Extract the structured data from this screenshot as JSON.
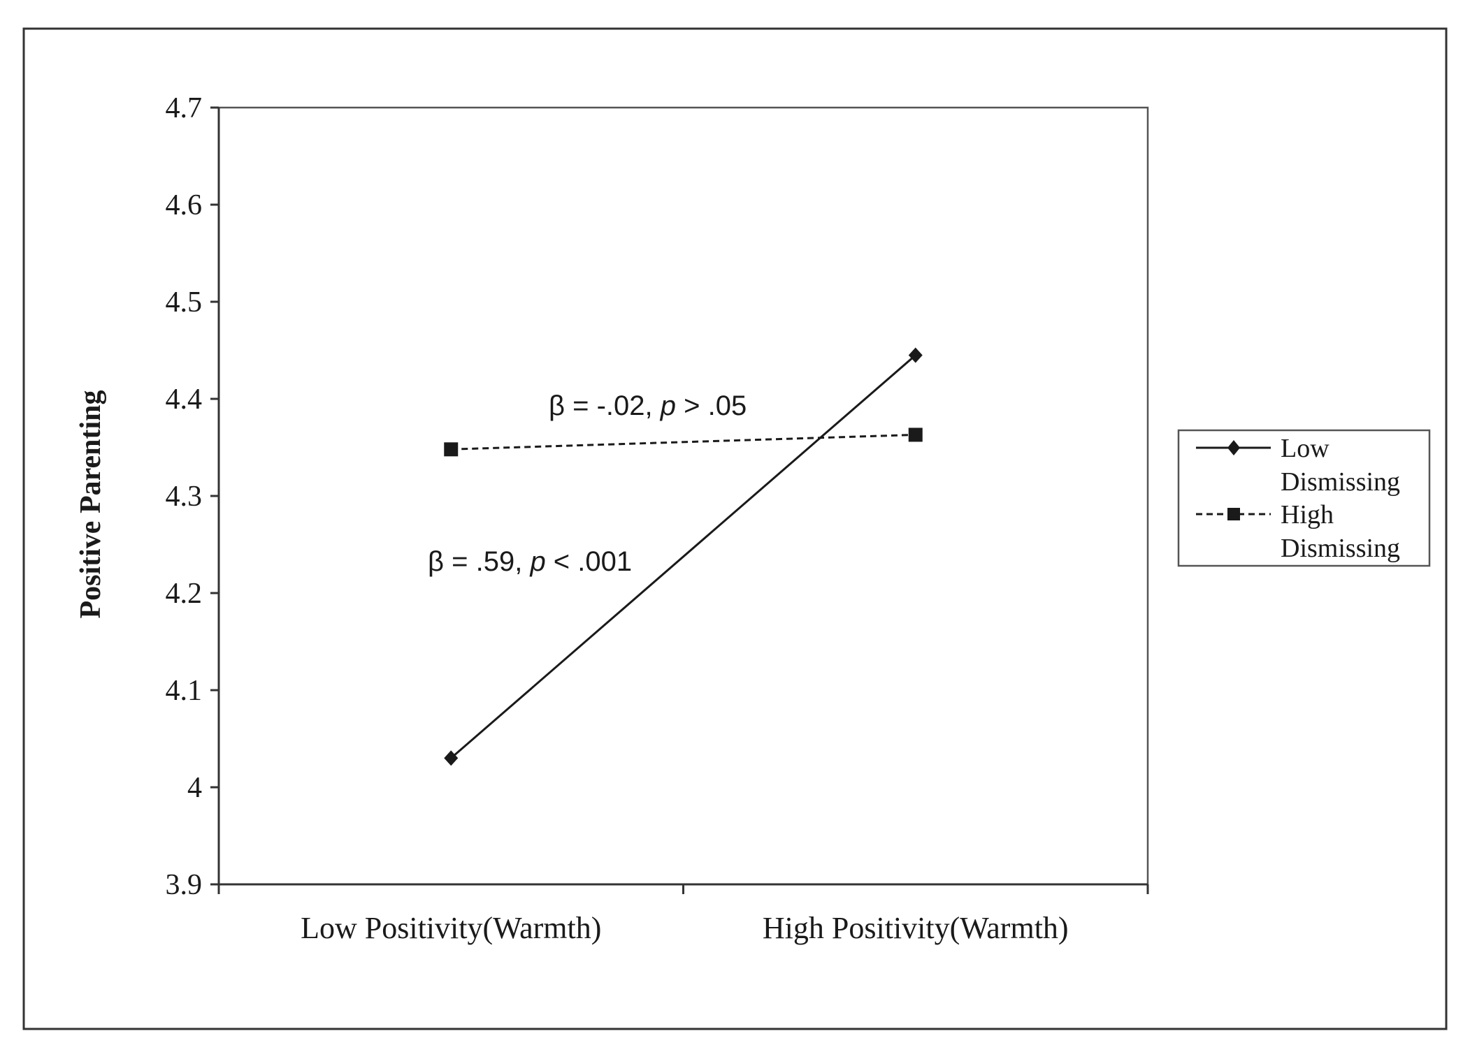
{
  "chart_data": {
    "type": "line",
    "title": "",
    "xlabel": "",
    "ylabel": "Positive Parenting",
    "categories": [
      "Low Positivity(Warmth)",
      "High Positivity(Warmth)"
    ],
    "ylim": [
      3.9,
      4.7
    ],
    "yticks": [
      "4.7",
      "4.6",
      "4.5",
      "4.4",
      "4.3",
      "4.2",
      "4.1",
      "4",
      "3.9"
    ],
    "ytick_values": [
      4.7,
      4.6,
      4.5,
      4.4,
      4.3,
      4.2,
      4.1,
      4.0,
      3.9
    ],
    "grid": false,
    "legend_position": "right",
    "series": [
      {
        "name_line1": "Low",
        "name_line2": "Dismissing",
        "values": [
          4.03,
          4.445
        ],
        "marker": "diamond",
        "line_style": "solid",
        "color": "#1a1a1a"
      },
      {
        "name_line1": "High",
        "name_line2": "Dismissing",
        "values": [
          4.348,
          4.363
        ],
        "marker": "square",
        "line_style": "dashed",
        "color": "#1a1a1a"
      }
    ],
    "annotations": [
      {
        "pre": "β = -.02, ",
        "italic": "p",
        "post": " > .05"
      },
      {
        "pre": "β = .59, ",
        "italic": "p",
        "post": " < .001"
      }
    ]
  }
}
